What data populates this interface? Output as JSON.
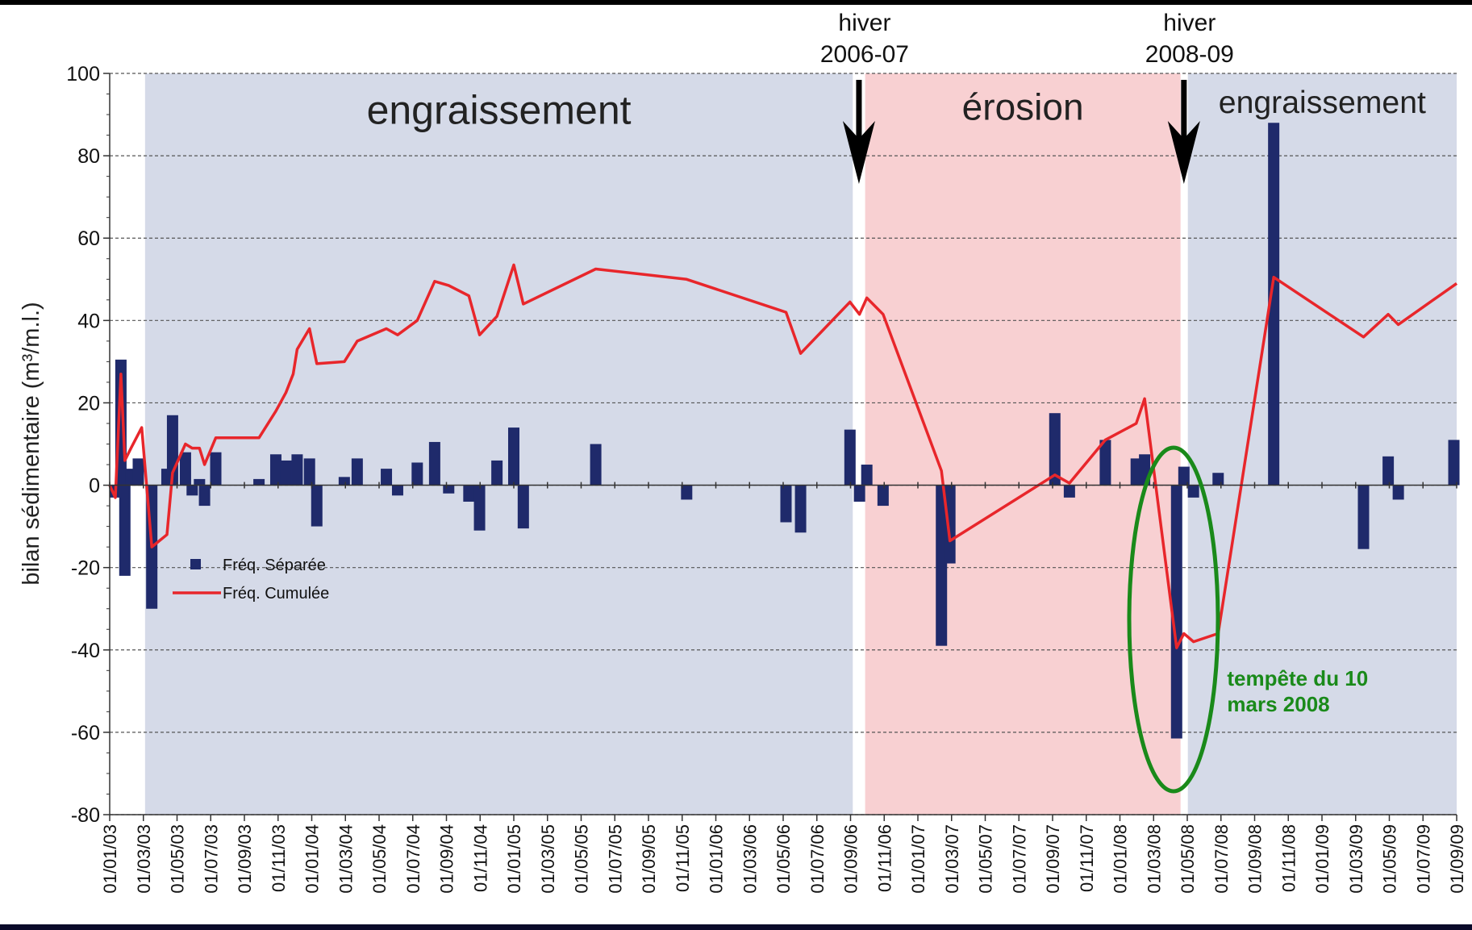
{
  "chart_data": {
    "type": "bar_line",
    "ylabel": "bilan sédimentaire (m³/m.l.)",
    "xlim": [
      "01/01/03",
      "01/09/09"
    ],
    "xticks": [
      "01/01/03",
      "01/03/03",
      "01/05/03",
      "01/07/03",
      "01/09/03",
      "01/11/03",
      "01/01/04",
      "01/03/04",
      "01/05/04",
      "01/07/04",
      "01/09/04",
      "01/11/04",
      "01/01/05",
      "01/03/05",
      "01/05/05",
      "01/07/05",
      "01/09/05",
      "01/11/05",
      "01/01/06",
      "01/03/06",
      "01/05/06",
      "01/07/06",
      "01/09/06",
      "01/11/06",
      "01/01/07",
      "01/03/07",
      "01/05/07",
      "01/07/07",
      "01/09/07",
      "01/11/07",
      "01/01/08",
      "01/03/08",
      "01/05/08",
      "01/07/08",
      "01/09/08",
      "01/11/08",
      "01/01/09",
      "01/03/09",
      "01/05/09",
      "01/07/09",
      "01/09/09"
    ],
    "ylim": [
      -80,
      100
    ],
    "yticks": [
      -80,
      -60,
      -40,
      -20,
      0,
      20,
      40,
      60,
      80,
      100
    ],
    "grid": true,
    "legend": "left",
    "regions": [
      {
        "label": "engraissement",
        "start": "04/03/03",
        "end": "05/09/06",
        "color": "#d5dae8"
      },
      {
        "label": "érosion",
        "start": "27/09/06",
        "end": "19/04/08",
        "color": "#f8d0d2"
      },
      {
        "label": "engraissement",
        "start": "02/05/08",
        "end": "01/09/09",
        "color": "#d5dae8"
      }
    ],
    "arrows": [
      {
        "lines": [
          "hiver",
          "2006-07"
        ],
        "x": "16/09/06"
      },
      {
        "lines": [
          "hiver",
          "2008-09"
        ],
        "x": "25/04/08"
      }
    ],
    "annotation": {
      "lines": [
        "tempête du 10",
        "mars 2008"
      ],
      "x": "12/07/08",
      "color": "#1a8a1a"
    },
    "series": [
      {
        "name": "Fréq. Séparée",
        "type": "bar",
        "color": "#1f2a6b",
        "x": [
          "11/01/03",
          "21/01/03",
          "28/01/03",
          "09/02/03",
          "22/02/03",
          "16/03/03",
          "13/04/03",
          "23/04/03",
          "16/05/03",
          "28/05/03",
          "11/06/03",
          "20/06/03",
          "10/07/03",
          "27/09/03",
          "27/10/03",
          "15/11/03",
          "05/12/03",
          "27/12/03",
          "10/01/04",
          "29/02/04",
          "22/03/04",
          "14/05/04",
          "04/06/04",
          "09/07/04",
          "10/08/04",
          "05/09/04",
          "11/10/04",
          "30/10/04",
          "01/12/04",
          "01/01/05",
          "18/01/05",
          "27/05/05",
          "09/11/05",
          "06/05/06",
          "02/06/06",
          "30/08/06",
          "17/09/06",
          "30/09/06",
          "29/10/06",
          "13/02/07",
          "28/02/07",
          "05/09/07",
          "01/10/07",
          "05/12/07",
          "30/01/08",
          "15/02/08",
          "12/04/08",
          "25/04/08",
          "12/05/08",
          "26/06/08",
          "05/10/08",
          "15/03/09",
          "29/04/09",
          "17/05/09",
          "26/08/09"
        ],
        "values": [
          -3,
          30.5,
          -22,
          4,
          6.5,
          -30,
          4,
          17,
          8,
          -2.5,
          1.5,
          -5,
          8,
          1.5,
          7.5,
          6,
          7.5,
          6.5,
          -10,
          2,
          6.5,
          4,
          -2.5,
          5.5,
          10.5,
          -2,
          -4,
          -11,
          6,
          14,
          -10.5,
          10,
          -3.5,
          -9,
          -11.5,
          13.5,
          -4,
          5,
          -5,
          -39,
          -19,
          17.5,
          -3,
          11,
          6.5,
          7.5,
          -61.5,
          4.5,
          -3,
          3,
          88,
          -15.5,
          7,
          -3.5,
          11
        ]
      },
      {
        "name": "Fréq. Cumulée",
        "type": "line",
        "color": "#e8262b",
        "x": [
          "01/01/03",
          "11/01/03",
          "21/01/03",
          "28/01/03",
          "09/02/03",
          "28/02/03",
          "16/03/03",
          "13/04/03",
          "23/04/03",
          "16/05/03",
          "28/05/03",
          "11/06/03",
          "20/06/03",
          "10/07/03",
          "27/09/03",
          "27/10/03",
          "15/11/03",
          "28/11/03",
          "05/12/03",
          "27/12/03",
          "10/01/04",
          "29/02/04",
          "22/03/04",
          "14/05/04",
          "04/06/04",
          "09/07/04",
          "10/08/04",
          "05/09/04",
          "11/10/04",
          "30/10/04",
          "01/12/04",
          "01/01/05",
          "18/01/05",
          "27/05/05",
          "09/11/05",
          "06/05/06",
          "02/06/06",
          "30/08/06",
          "17/09/06",
          "30/09/06",
          "29/10/06",
          "13/02/07",
          "28/02/07",
          "05/09/07",
          "01/10/07",
          "05/12/07",
          "30/01/08",
          "15/02/08",
          "12/04/08",
          "25/04/08",
          "12/05/08",
          "26/06/08",
          "05/10/08",
          "15/03/09",
          "29/04/09",
          "17/05/09",
          "01/09/09"
        ],
        "values": [
          0,
          -3,
          27,
          6,
          9,
          14,
          -15,
          -12,
          3,
          10,
          9,
          9,
          5,
          11.5,
          11.5,
          18,
          22.5,
          27,
          33,
          38,
          29.5,
          30,
          35,
          38,
          36.5,
          40,
          49.5,
          48.5,
          46,
          36.5,
          41,
          53.5,
          44,
          52.5,
          50,
          42,
          32,
          44.5,
          41.5,
          45.5,
          41.5,
          3.5,
          -13.5,
          2.5,
          0.5,
          11,
          15,
          21,
          -39.5,
          -36,
          -38,
          -36,
          50.5,
          36,
          41.5,
          39,
          49
        ]
      }
    ]
  }
}
